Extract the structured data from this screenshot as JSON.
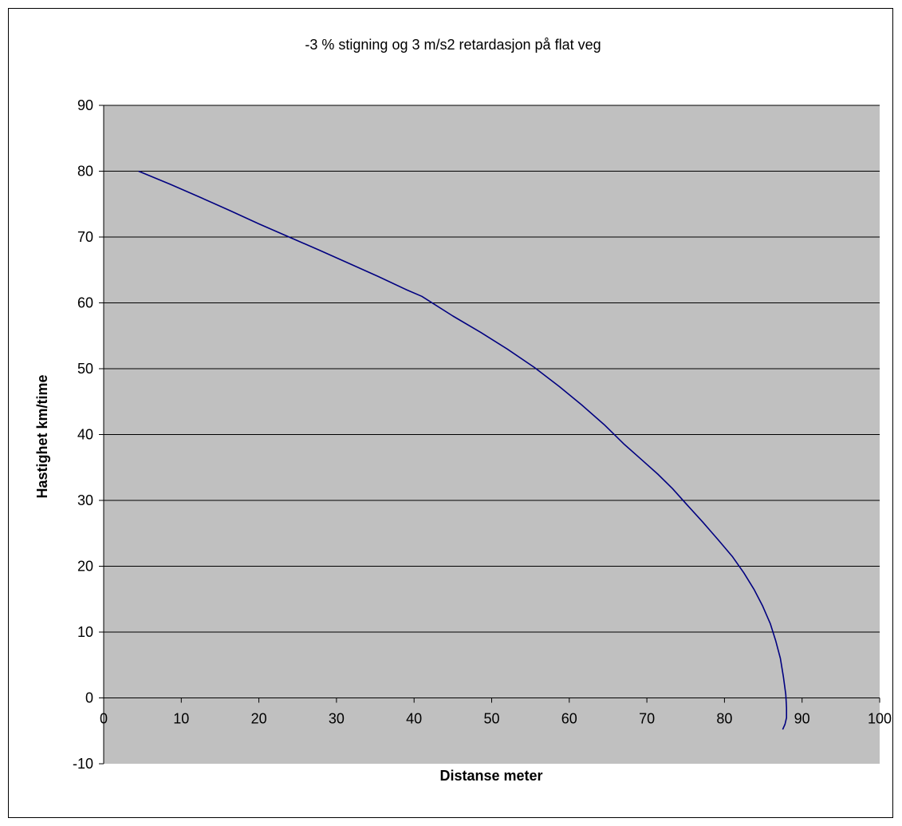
{
  "chart_data": {
    "type": "line",
    "title": "-3 % stigning  og 3 m/s2 retardasjon på flat veg",
    "xlabel": "Distanse meter",
    "ylabel": "Hastighet km/time",
    "xlim": [
      0,
      100
    ],
    "ylim": [
      -10,
      90
    ],
    "xticks": [
      "0",
      "10",
      "20",
      "30",
      "40",
      "50",
      "60",
      "70",
      "80",
      "90",
      "100"
    ],
    "yticks": [
      "-10",
      "0",
      "10",
      "20",
      "30",
      "40",
      "50",
      "60",
      "70",
      "80",
      "90"
    ],
    "grid": "horizontal",
    "legend": "none",
    "colors": {
      "plot_bg": "#c0c0c0",
      "line": "#000080",
      "gridline": "#000000"
    },
    "series": [
      {
        "x": [
          4.5,
          8.6,
          12.5,
          16.3,
          20.0,
          23.9,
          27.8,
          31.6,
          35.4,
          39.0,
          41.0,
          45.0,
          48.6,
          52.0,
          55.5,
          58.7,
          61.6,
          64.5,
          67.1,
          69.3,
          71.4,
          73.3,
          75.2,
          77.2,
          79.2,
          81.0,
          82.5,
          83.8,
          84.9,
          85.9,
          86.6,
          87.2,
          87.6,
          87.9,
          88.0,
          88.0,
          87.8,
          87.5
        ],
        "y": [
          80,
          78,
          76,
          74,
          72,
          70,
          68,
          66,
          64,
          62,
          61,
          58,
          55.5,
          53,
          50.2,
          47.3,
          44.5,
          41.5,
          38.5,
          36.2,
          34.0,
          31.8,
          29.3,
          26.7,
          24.0,
          21.5,
          19.0,
          16.5,
          14.0,
          11.3,
          8.7,
          6.0,
          3.2,
          0.5,
          -1.5,
          -3.0,
          -4.0,
          -4.8
        ]
      }
    ]
  }
}
